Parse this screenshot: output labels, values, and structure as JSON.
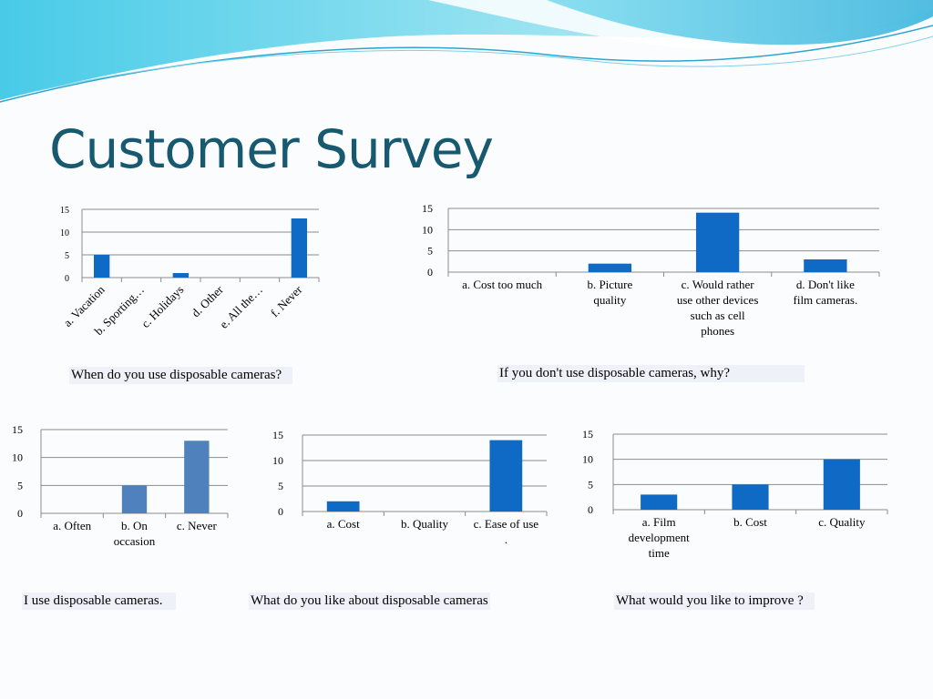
{
  "slide": {
    "title": "Customer Survey"
  },
  "captions": {
    "c1": "When do you use disposable cameras?",
    "c2": "If you don't use disposable cameras, why?",
    "c3": "I use disposable cameras.",
    "c4": "What do you like about disposable cameras",
    "c5": "What would you like to improve ?"
  },
  "colors": {
    "bar": "#0f6ac6",
    "bar_light": "#4f81bd",
    "title": "#17596f"
  },
  "chart_data": [
    {
      "id": "c1",
      "type": "bar",
      "title": "When do you use disposable cameras?",
      "categories": [
        "a. Vacation",
        "b. Sporting…",
        "c. Holidays",
        "d. Other",
        "e. All the…",
        "f. Never"
      ],
      "values": [
        5,
        0,
        1,
        0,
        0,
        13
      ],
      "ylim": [
        0,
        15
      ],
      "yticks": [
        0,
        5,
        10,
        15
      ],
      "grid": true
    },
    {
      "id": "c2",
      "type": "bar",
      "title": "If you don't use disposable cameras, why?",
      "categories": [
        "a. Cost too much",
        "b. Picture quality",
        "c. Would rather use other devices such as cell phones",
        "d. Don't like film cameras."
      ],
      "values": [
        0,
        2,
        14,
        3
      ],
      "ylim": [
        0,
        15
      ],
      "yticks": [
        0,
        5,
        10,
        15
      ],
      "grid": true
    },
    {
      "id": "c3",
      "type": "bar",
      "title": "I use disposable cameras.",
      "categories": [
        "a. Often",
        "b. On occasion",
        "c. Never"
      ],
      "values": [
        0,
        5,
        13
      ],
      "ylim": [
        0,
        15
      ],
      "yticks": [
        0,
        5,
        10,
        15
      ],
      "grid": true
    },
    {
      "id": "c4",
      "type": "bar",
      "title": "What do you like about disposable cameras",
      "categories": [
        "a. Cost",
        "b. Quality",
        "c. Ease of use ."
      ],
      "values": [
        2,
        0,
        14
      ],
      "ylim": [
        0,
        15
      ],
      "yticks": [
        0,
        5,
        10,
        15
      ],
      "grid": true
    },
    {
      "id": "c5",
      "type": "bar",
      "title": "What would you like to improve ?",
      "categories": [
        "a. Film development time",
        "b. Cost",
        "c. Quality"
      ],
      "values": [
        3,
        5,
        10
      ],
      "ylim": [
        0,
        15
      ],
      "yticks": [
        0,
        5,
        10,
        15
      ],
      "grid": true
    }
  ]
}
